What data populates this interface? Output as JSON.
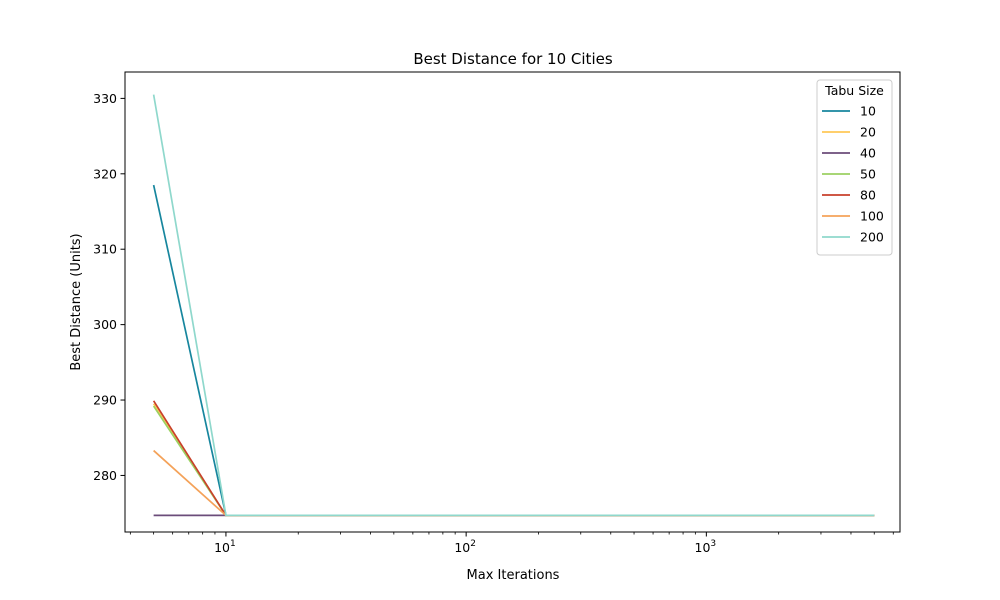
{
  "chart_data": {
    "type": "line",
    "title": "Best Distance for 10 Cities",
    "xlabel": "Max Iterations",
    "ylabel": "Best Distance (Units)",
    "x_scale": "log",
    "xlim": [
      3.8,
      6400
    ],
    "ylim": [
      272.5,
      333.5
    ],
    "x": [
      5,
      10,
      5000
    ],
    "x_ticks": [
      {
        "base": "10",
        "exp": "1"
      },
      {
        "base": "10",
        "exp": "2"
      },
      {
        "base": "10",
        "exp": "3"
      }
    ],
    "y_ticks": [
      "280",
      "290",
      "300",
      "310",
      "320",
      "330"
    ],
    "grid": false,
    "legend": {
      "title": "Tabu Size",
      "position": "top-right"
    },
    "series": [
      {
        "name": "10",
        "color": "#17869e",
        "values": [
          318.5,
          274.7,
          274.7
        ]
      },
      {
        "name": "20",
        "color": "#ffc857",
        "values": [
          289.5,
          274.7,
          274.7
        ]
      },
      {
        "name": "40",
        "color": "#6b4c7a",
        "values": [
          274.7,
          274.7,
          274.7
        ]
      },
      {
        "name": "50",
        "color": "#9bd162",
        "values": [
          289.2,
          274.7,
          274.7
        ]
      },
      {
        "name": "80",
        "color": "#c8412b",
        "values": [
          289.9,
          274.7,
          274.7
        ]
      },
      {
        "name": "100",
        "color": "#f4a259",
        "values": [
          283.3,
          274.7,
          274.7
        ]
      },
      {
        "name": "200",
        "color": "#8fd8cc",
        "values": [
          330.5,
          274.7,
          274.7
        ]
      }
    ]
  }
}
